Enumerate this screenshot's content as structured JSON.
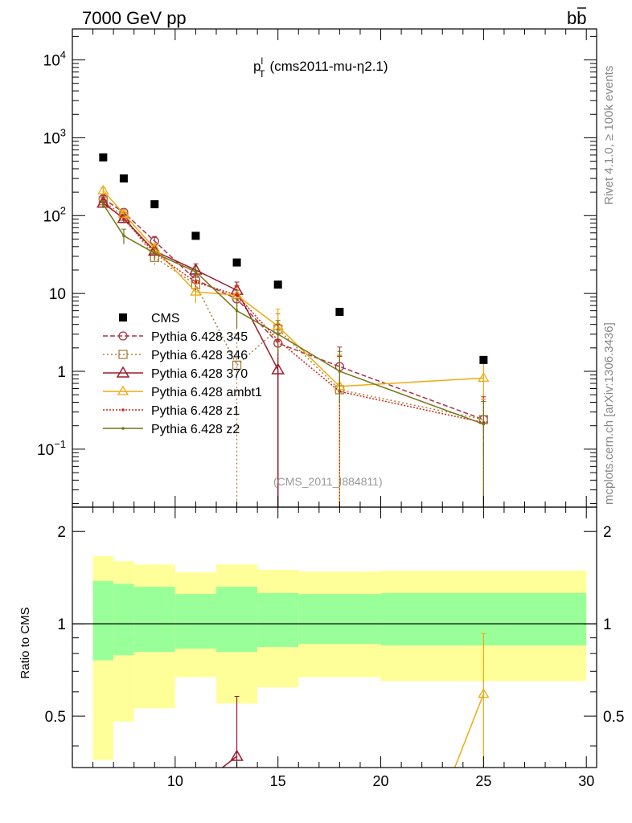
{
  "header": {
    "energy_label": "7000 GeV pp",
    "process_label": "b",
    "process_label_bar": "b",
    "side_label_rivet": "Rivet 4.1.0, ≥ 100k events",
    "side_label_mcplots": "mcplots.cern.ch [arXiv:1306.3436]"
  },
  "main": {
    "title_p": "p",
    "title_sup": "l",
    "title_sub": "T",
    "title_rest": "(cms2011-mu-η2.1)",
    "analysis_tag": "(CMS_2011_I884811)",
    "y_ticks": [
      {
        "base": "10",
        "exp": "−1",
        "value": 0.1
      },
      {
        "base": "1",
        "exp": "",
        "value": 1
      },
      {
        "base": "10",
        "exp": "",
        "value": 10
      },
      {
        "base": "10",
        "exp": "2",
        "value": 100
      },
      {
        "base": "10",
        "exp": "3",
        "value": 1000
      },
      {
        "base": "10",
        "exp": "4",
        "value": 10000
      }
    ]
  },
  "ratio": {
    "ylabel": "Ratio to CMS",
    "y_ticks": [
      {
        "label": "0.5",
        "value": 0.5
      },
      {
        "label": "1",
        "value": 1
      },
      {
        "label": "2",
        "value": 2
      }
    ],
    "x_ticks": [
      {
        "label": "10",
        "value": 10
      },
      {
        "label": "15",
        "value": 15
      },
      {
        "label": "20",
        "value": 20
      },
      {
        "label": "25",
        "value": 25
      },
      {
        "label": "30",
        "value": 30
      }
    ]
  },
  "chart_data": {
    "type": "line",
    "title": "p_T^l (cms2011-mu-η2.1)",
    "xlabel": "",
    "ylabel": "",
    "xlim": [
      5,
      30.5
    ],
    "ylim": [
      0.018,
      25000
    ],
    "yscale": "log",
    "bins": [
      [
        6,
        7
      ],
      [
        7,
        8
      ],
      [
        8,
        10
      ],
      [
        10,
        12
      ],
      [
        12,
        14
      ],
      [
        14,
        16
      ],
      [
        16,
        20
      ],
      [
        20,
        30
      ]
    ],
    "data_x": [
      6.5,
      7.5,
      9,
      11,
      13,
      15,
      18,
      25
    ],
    "data": {
      "name": "CMS",
      "values": [
        560,
        300,
        140,
        55,
        25,
        13,
        5.8,
        1.4
      ],
      "band_inner_lo": [
        0.76,
        0.79,
        0.81,
        0.83,
        0.81,
        0.84,
        0.86,
        0.85
      ],
      "band_inner_hi": [
        1.38,
        1.35,
        1.32,
        1.25,
        1.32,
        1.26,
        1.25,
        1.26
      ],
      "band_outer_lo": [
        0.36,
        0.48,
        0.53,
        0.67,
        0.55,
        0.62,
        0.67,
        0.65
      ],
      "band_outer_hi": [
        1.66,
        1.6,
        1.56,
        1.47,
        1.56,
        1.5,
        1.48,
        1.49
      ]
    },
    "series": [
      {
        "name": "Pythia 6.428 345",
        "color": "#a83248",
        "dash": "6,3",
        "marker": "circle",
        "values": [
          165,
          110,
          47,
          15,
          8.5,
          2.3,
          1.15,
          0.24
        ],
        "err_lo": [
          15,
          12,
          7,
          3,
          2.5,
          1.0,
          1.05,
          0.16
        ],
        "err_hi": [
          15,
          12,
          7,
          3,
          2.5,
          1.2,
          0.9,
          0.2
        ]
      },
      {
        "name": "Pythia 6.428 346",
        "color": "#a88040",
        "dash": "2,3",
        "marker": "square",
        "values": [
          155,
          98,
          29,
          13,
          1.2,
          3.5,
          0.58,
          0.24
        ],
        "err_lo": [
          15,
          12,
          6,
          3,
          1.19,
          1.5,
          0.579,
          0.239
        ],
        "err_hi": [
          15,
          12,
          6,
          3,
          1.8,
          2.0,
          1.0,
          0.2
        ]
      },
      {
        "name": "Pythia 6.428 370",
        "color": "#9b1b2d",
        "dash": "",
        "marker": "triangle",
        "values": [
          145,
          92,
          35,
          20,
          11,
          1.05,
          null,
          null
        ],
        "err_lo": [
          15,
          12,
          6,
          4,
          3,
          1.049,
          null,
          null
        ],
        "err_hi": [
          15,
          12,
          6,
          4,
          3,
          2,
          null,
          null
        ]
      },
      {
        "name": "Pythia 6.428 ambt1",
        "color": "#f0aa10",
        "dash": "",
        "marker": "triangle-open",
        "values": [
          210,
          105,
          38,
          10.5,
          9.5,
          3.8,
          0.64,
          0.82
        ],
        "err_lo": [
          18,
          12,
          6,
          3,
          3,
          2.0,
          0.639,
          0.5
        ],
        "err_hi": [
          18,
          12,
          6,
          3,
          3,
          2.5,
          1.0,
          0.5
        ]
      },
      {
        "name": "Pythia 6.428 z1",
        "color": "#d02010",
        "dash": "2,2",
        "marker": "dot",
        "values": [
          150,
          90,
          33,
          14,
          9.5,
          2.5,
          0.55,
          0.22
        ],
        "err_lo": [
          15,
          12,
          6,
          3,
          3,
          1.2,
          0.549,
          0.219
        ],
        "err_hi": [
          15,
          12,
          6,
          3,
          3,
          1.5,
          1.0,
          0.25
        ]
      },
      {
        "name": "Pythia 6.428 z2",
        "color": "#757515",
        "dash": "",
        "marker": "dot",
        "values": [
          140,
          55,
          33,
          19,
          6,
          3,
          1.0,
          0.21
        ],
        "err_lo": [
          15,
          12,
          6,
          3,
          2.5,
          1.3,
          0.6,
          0.209
        ],
        "err_hi": [
          15,
          12,
          6,
          3,
          2.5,
          1.5,
          0.8,
          0.2
        ]
      }
    ],
    "ratio_points": [
      {
        "series": "Pythia 6.428 370",
        "x": 13,
        "value": 0.37,
        "err_hi": 0.58
      },
      {
        "series": "Pythia 6.428 ambt1",
        "x": 25,
        "value": 0.59,
        "err_hi": 0.93
      }
    ],
    "ratio_ylim": [
      0.34,
      2.4
    ],
    "ratio_yscale": "log"
  }
}
